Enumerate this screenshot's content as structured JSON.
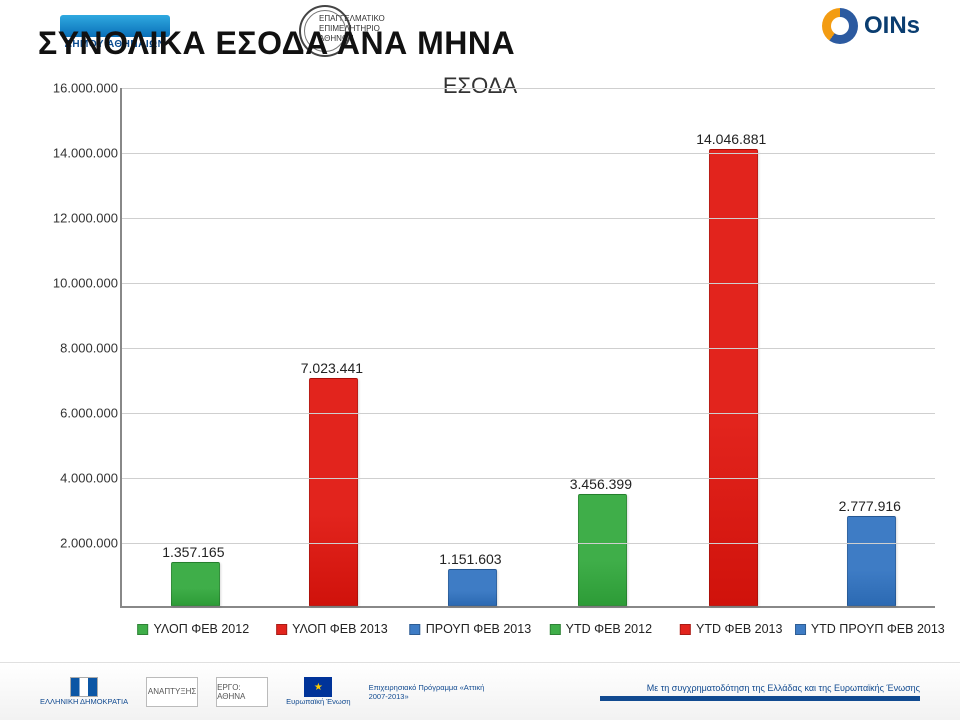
{
  "header": {
    "left_logo_text": "ΔΗΜΟΥ ΑΘΗΝΑΙΩΝ",
    "mid_logo_text": "ΕΠΑΓΓΕΛΜΑΤΙΚΟ ΕΠΙΜΕΛΗΤΗΡΙΟ ΑΘΗΝΩΝ",
    "coins_text": "OINs"
  },
  "titles": {
    "main": "ΣΥΝΟΛΙΚΑ ΕΣΟΔΑ ΑΝΑ ΜΗΝΑ",
    "chart": "ΕΣΟΔΑ"
  },
  "chart": {
    "type": "bar",
    "background_color": "#ffffff",
    "grid_color": "#cfcfcf",
    "axis_color": "#888888",
    "axis_width": 2,
    "bar_border_color": "rgba(0,0,0,0.18)",
    "label_fontsize": 13,
    "value_label_fontsize": 14,
    "x_label_fontsize": 12.5,
    "text_color": "#222222",
    "ylim": [
      0,
      16000000
    ],
    "ytick_step": 2000000,
    "ylabels": [
      "16.000.000",
      "14.000.000",
      "12.000.000",
      "10.000.000",
      "8.000.000",
      "6.000.000",
      "4.000.000",
      "2.000.000"
    ],
    "yvalues": [
      16000000,
      14000000,
      12000000,
      10000000,
      8000000,
      6000000,
      4000000,
      2000000
    ],
    "bar_width_pct": 6.0,
    "series": [
      {
        "label": "ΥΛΟΠ ΦΕΒ 2012",
        "value": 1357165,
        "display": "1.357.165",
        "color": "#3fae49",
        "legend_box_color": "#3fae49",
        "x_pct": 9
      },
      {
        "label": "ΥΛΟΠ ΦΕΒ 2013",
        "value": 7023441,
        "display": "7.023.441",
        "color": "#e2241d",
        "legend_box_color": "#e2241d",
        "x_pct": 26
      },
      {
        "label": "ΠΡΟΥΠ ΦΕΒ 2013",
        "value": 1151603,
        "display": "1.151.603",
        "color": "#3e7cc5",
        "legend_box_color": "#3e7cc5",
        "x_pct": 43
      },
      {
        "label": "YTD ΦΕΒ 2012",
        "value": 3456399,
        "display": "3.456.399",
        "color": "#3fae49",
        "legend_box_color": "#3fae49",
        "x_pct": 59
      },
      {
        "label": "YTD ΦΕΒ 2013",
        "value": 14046881,
        "display": "14.046.881",
        "color": "#e2241d",
        "legend_box_color": "#e2241d",
        "x_pct": 75
      },
      {
        "label": "YTD ΠΡΟΥΠ ΦΕΒ 2013",
        "value": 2777916,
        "display": "2.777.916",
        "color": "#3e7cc5",
        "legend_box_color": "#3e7cc5",
        "x_pct": 92
      }
    ]
  },
  "footer": {
    "flag_label": "ΕΛΛΗΝΙΚΗ ΔΗΜΟΚΡΑΤΙΑ",
    "box1": "ΑΝΑΠΤΥΞΗΣ",
    "box2": "ΕΡΓΟ: ΑΘΗΝΑ",
    "eu_label": "Ευρωπαϊκή Ένωση",
    "prog_label": "Επιχειρησιακό Πρόγραμμα «Αττική 2007-2013»",
    "tagline": "Με τη συγχρηματοδότηση της Ελλάδας και της Ευρωπαϊκής Ένωσης"
  }
}
